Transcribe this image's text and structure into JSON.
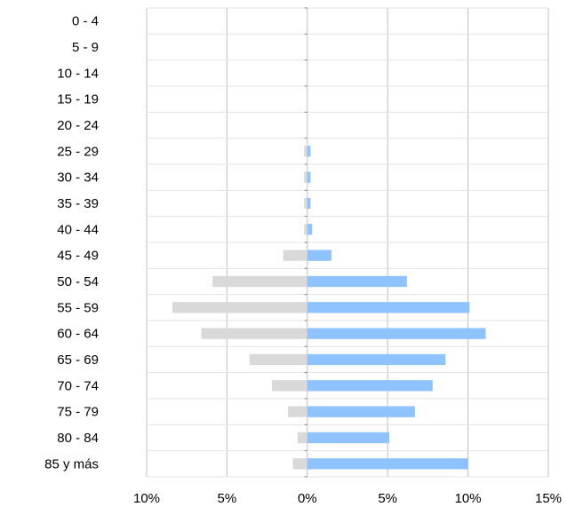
{
  "chart_data": {
    "type": "bar",
    "orientation": "horizontal",
    "layout": "population-pyramid",
    "title": "",
    "xlabel": "",
    "ylabel": "",
    "categories": [
      "0 - 4",
      "5 - 9",
      "10 - 14",
      "15 - 19",
      "20 - 24",
      "25 - 29",
      "30 - 34",
      "35 - 39",
      "40 - 44",
      "45 - 49",
      "50 - 54",
      "55 - 59",
      "60 - 64",
      "65 - 69",
      "70 - 74",
      "75 - 79",
      "80 - 84",
      "85 y más"
    ],
    "series": [
      {
        "side": "left",
        "color": "#d9d9d9",
        "values": [
          0,
          0,
          0,
          0,
          0,
          0.2,
          0.2,
          0.2,
          0.2,
          1.5,
          5.9,
          8.4,
          6.6,
          3.6,
          2.2,
          1.2,
          0.6,
          0.9
        ]
      },
      {
        "side": "right",
        "color": "#8fc3ff",
        "values": [
          0,
          0,
          0,
          0,
          0,
          0.2,
          0.2,
          0.2,
          0.3,
          1.5,
          6.2,
          10.1,
          11.1,
          8.6,
          7.8,
          6.7,
          5.1,
          10.0
        ]
      }
    ],
    "xlim": [
      -10,
      15
    ],
    "xticks": [
      -10,
      -5,
      0,
      5,
      10,
      15
    ],
    "xtick_labels": [
      "10%",
      "5%",
      "0%",
      "5%",
      "10%",
      "15%"
    ],
    "grid": true
  }
}
